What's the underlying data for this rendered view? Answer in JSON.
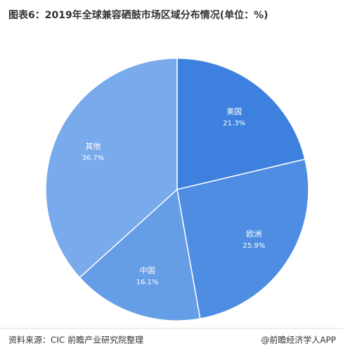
{
  "chart_data": {
    "type": "pie",
    "title": "图表6：2019年全球兼容硒鼓市场区域分布情况(单位：%)",
    "categories": [
      "美国",
      "欧洲",
      "中国",
      "其他"
    ],
    "values": [
      21.3,
      25.9,
      16.1,
      36.7
    ],
    "value_labels": [
      "21.3%",
      "25.9%",
      "16.1%",
      "36.7%"
    ],
    "colors": [
      "#3d80dd",
      "#4e8de1",
      "#659de6",
      "#78aaec"
    ],
    "source": "资料来源：CIC 前瞻产业研究院整理",
    "credit": "@前瞻经济学人APP"
  }
}
